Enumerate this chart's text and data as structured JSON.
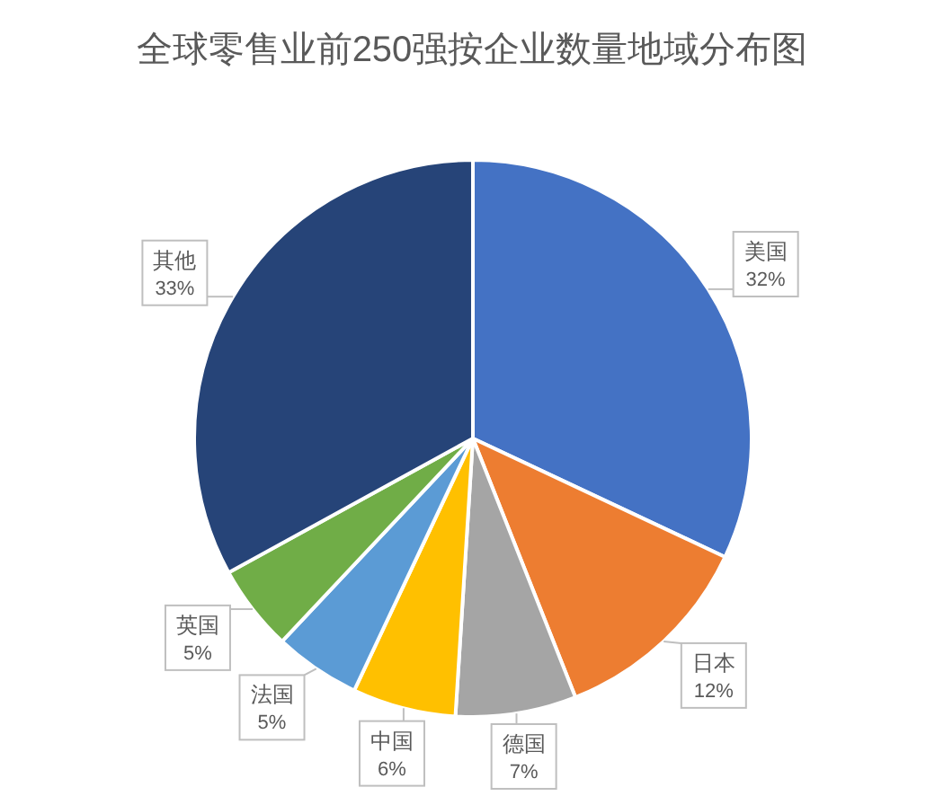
{
  "chart_data": {
    "type": "pie",
    "title": "全球零售业前250强按企业数量地域分布图",
    "categories": [
      "美国",
      "日本",
      "德国",
      "中国",
      "法国",
      "英国",
      "其他"
    ],
    "values": [
      32,
      12,
      7,
      6,
      5,
      5,
      33
    ],
    "colors": [
      "#4472c4",
      "#ed7d31",
      "#a5a5a5",
      "#ffc000",
      "#5b9bd5",
      "#70ad47",
      "#264478"
    ],
    "value_labels": [
      "32%",
      "12%",
      "7%",
      "6%",
      "5%",
      "5%",
      "33%"
    ],
    "legend": false
  }
}
